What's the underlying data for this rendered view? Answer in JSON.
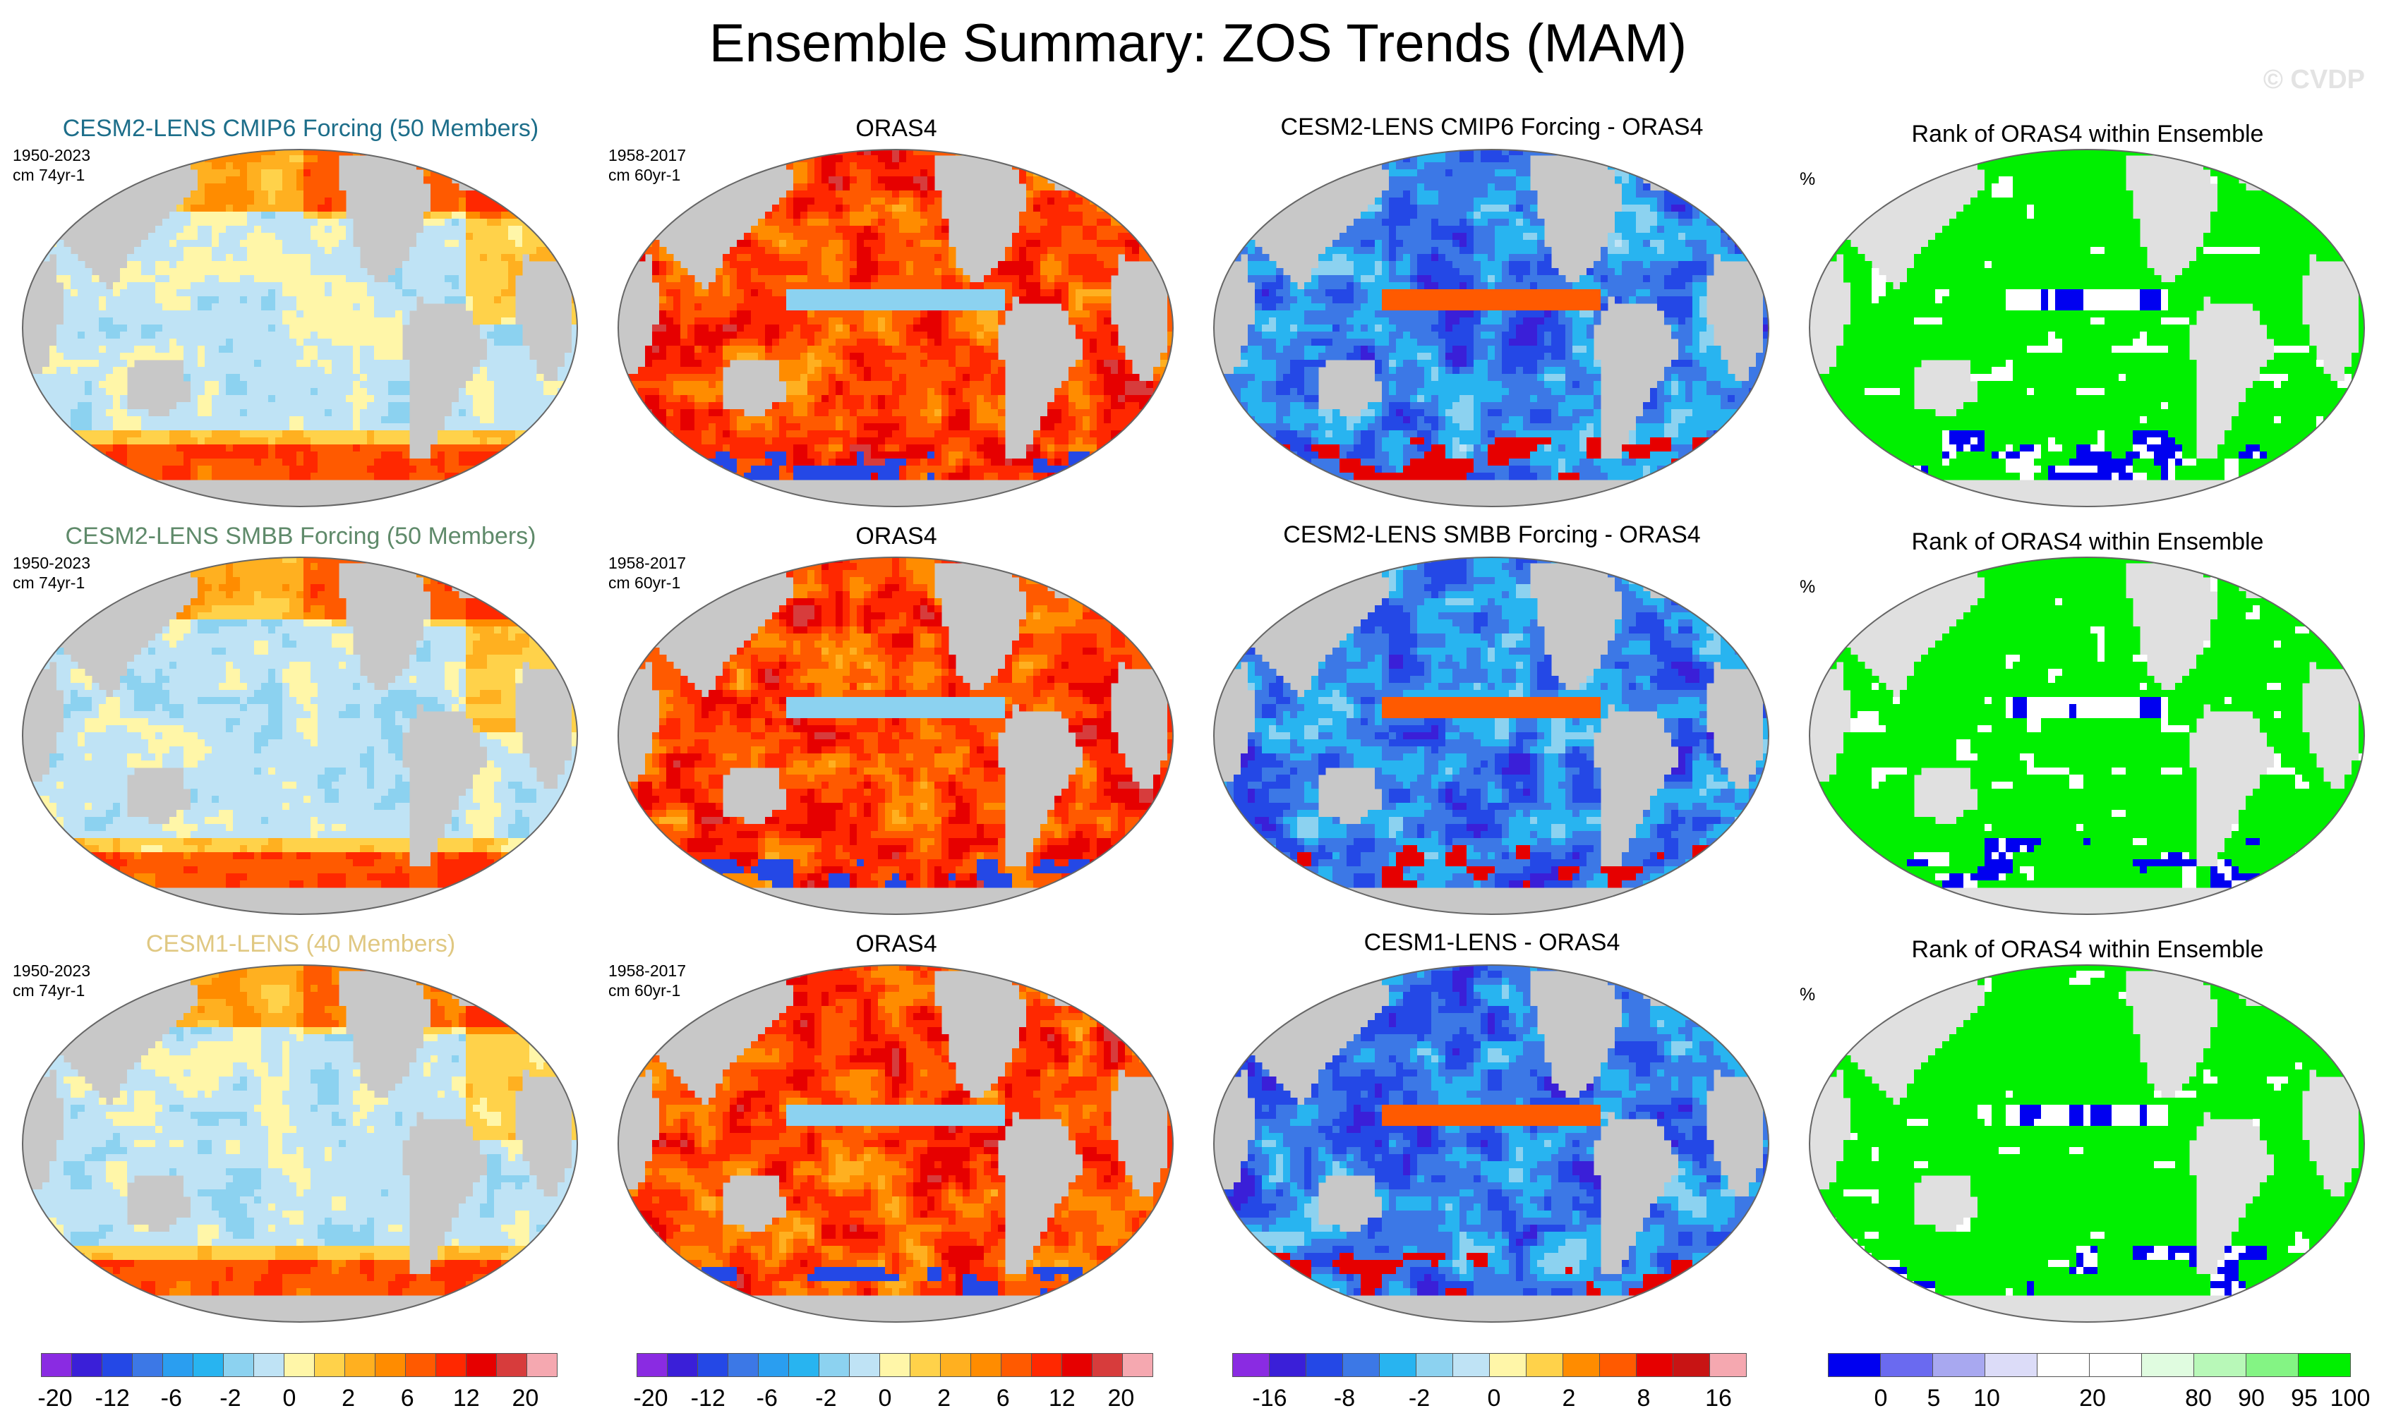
{
  "header": {
    "title": "Ensemble Summary: ZOS Trends (MAM)",
    "watermark": "© CVDP"
  },
  "colors": {
    "title_cmip6": "#1d6e8a",
    "title_smbb": "#5f8a6a",
    "title_cesm1": "#e0c882",
    "land": "#c8c8c8",
    "rank_land": "#e0e0e0"
  },
  "chart_data": [
    {
      "type": "heatmap",
      "title": "CESM2-LENS CMIP6 Forcing (50 Members)",
      "period": "1950-2023",
      "units": "cm 74yr-1",
      "style": "ens_mean"
    },
    {
      "type": "heatmap",
      "title": "ORAS4",
      "period": "1958-2017",
      "units": "cm 60yr-1",
      "style": "obs"
    },
    {
      "type": "heatmap",
      "title": "CESM2-LENS CMIP6 Forcing - ORAS4",
      "style": "diff"
    },
    {
      "type": "heatmap",
      "title": "Rank of ORAS4 within Ensemble",
      "units": "%",
      "style": "rank"
    },
    {
      "type": "heatmap",
      "title": "CESM2-LENS SMBB Forcing (50 Members)",
      "period": "1950-2023",
      "units": "cm 74yr-1",
      "style": "ens_mean"
    },
    {
      "type": "heatmap",
      "title": "ORAS4",
      "period": "1958-2017",
      "units": "cm 60yr-1",
      "style": "obs"
    },
    {
      "type": "heatmap",
      "title": "CESM2-LENS SMBB Forcing - ORAS4",
      "style": "diff"
    },
    {
      "type": "heatmap",
      "title": "Rank of ORAS4 within Ensemble",
      "units": "%",
      "style": "rank"
    },
    {
      "type": "heatmap",
      "title": "CESM1-LENS (40 Members)",
      "period": "1950-2023",
      "units": "cm 74yr-1",
      "style": "ens_mean"
    },
    {
      "type": "heatmap",
      "title": "ORAS4",
      "period": "1958-2017",
      "units": "cm 60yr-1",
      "style": "obs"
    },
    {
      "type": "heatmap",
      "title": "CESM1-LENS - ORAS4",
      "style": "diff"
    },
    {
      "type": "heatmap",
      "title": "Rank of ORAS4 within Ensemble",
      "units": "%",
      "style": "rank"
    }
  ],
  "colorbars": [
    {
      "colors": [
        "#8a2be2",
        "#3a1fd8",
        "#2448e6",
        "#3c78e6",
        "#2a9ef0",
        "#28b4f0",
        "#8cd2f0",
        "#bfe3f5",
        "#fff6a8",
        "#ffd24a",
        "#ffb020",
        "#ff8c00",
        "#ff5a00",
        "#ff2800",
        "#e60000",
        "#d73c3c",
        "#f5a8b0"
      ],
      "tick_labels": [
        "-20",
        "-12",
        "-6",
        "-2",
        "0",
        "2",
        "6",
        "12",
        "20"
      ]
    },
    {
      "colors": [
        "#8a2be2",
        "#3a1fd8",
        "#2448e6",
        "#3c78e6",
        "#2a9ef0",
        "#28b4f0",
        "#8cd2f0",
        "#bfe3f5",
        "#fff6a8",
        "#ffd24a",
        "#ffb020",
        "#ff8c00",
        "#ff5a00",
        "#ff2800",
        "#e60000",
        "#d73c3c",
        "#f5a8b0"
      ],
      "tick_labels": [
        "-20",
        "-12",
        "-6",
        "-2",
        "0",
        "2",
        "6",
        "12",
        "20"
      ]
    },
    {
      "colors": [
        "#8a2be2",
        "#3a1fd8",
        "#2448e6",
        "#3c78e6",
        "#28b4f0",
        "#8cd2f0",
        "#bfe3f5",
        "#fff6a8",
        "#ffd24a",
        "#ff8c00",
        "#ff5a00",
        "#e60000",
        "#c81414",
        "#f5a8b0"
      ],
      "tick_labels": [
        "-16",
        "-8",
        "-2",
        "0",
        "2",
        "8",
        "16"
      ]
    },
    {
      "colors": [
        "#0000f0",
        "#6a6af0",
        "#a8a8f0",
        "#dcdcf8",
        "#ffffff",
        "#ffffff",
        "#e0fce0",
        "#b8f8b8",
        "#84f484",
        "#00f000"
      ],
      "tick_labels": [
        "0",
        "5",
        "10",
        "20",
        "80",
        "90",
        "95",
        "100"
      ]
    }
  ]
}
